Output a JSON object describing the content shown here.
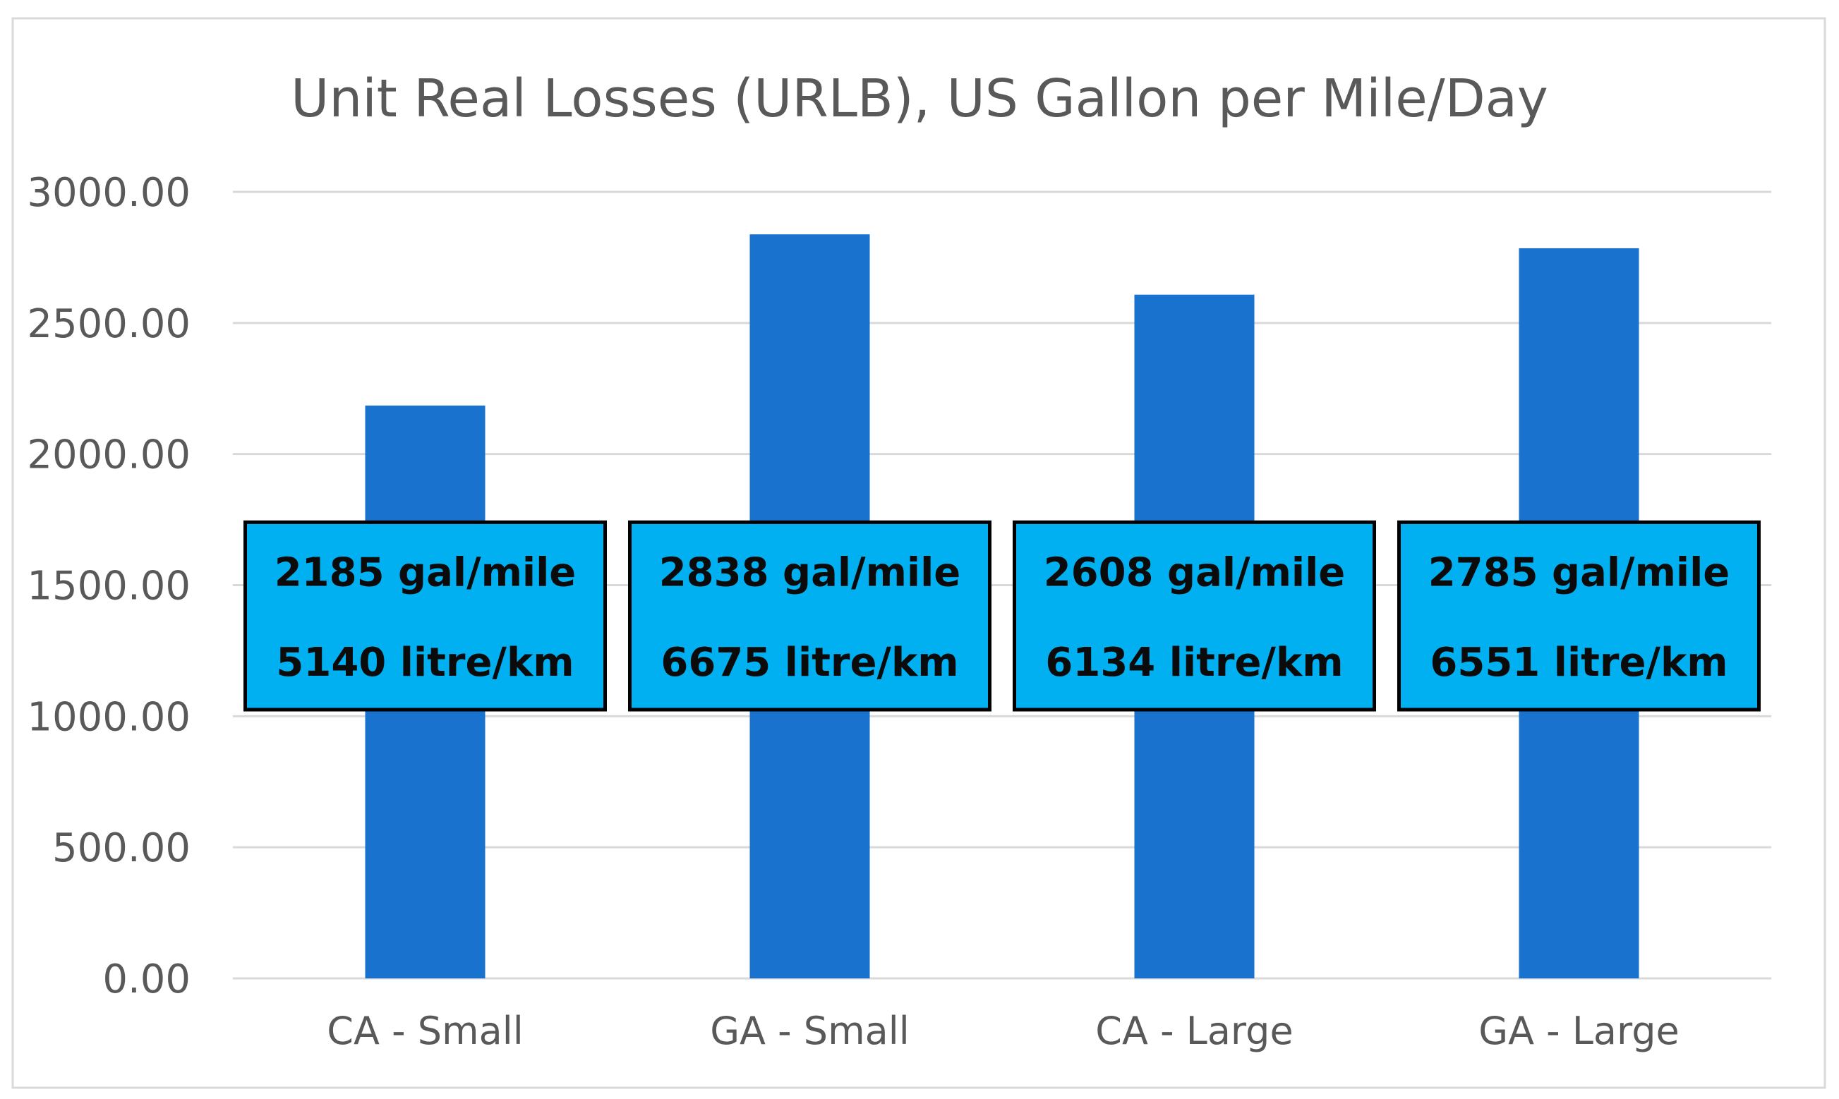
{
  "chart_data": {
    "type": "bar",
    "title": "Unit Real Losses (URLB), US Gallon per Mile/Day",
    "xlabel": "",
    "ylabel": "",
    "categories": [
      "CA - Small",
      "GA - Small",
      "CA - Large",
      "GA - Large"
    ],
    "values": [
      2185,
      2838,
      2608,
      2785
    ],
    "ylim": [
      0,
      3000
    ],
    "yticks": [
      0,
      500,
      1000,
      1500,
      2000,
      2500,
      3000
    ],
    "ytick_labels": [
      "0.00",
      "500.00",
      "1000.00",
      "1500.00",
      "2000.00",
      "2500.00",
      "3000.00"
    ],
    "grid": true,
    "legend": "none",
    "annotations": [
      {
        "category": "CA - Small",
        "line1": "2185 gal/mile",
        "line2": "5140 litre/km"
      },
      {
        "category": "GA - Small",
        "line1": "2838 gal/mile",
        "line2": "6675 litre/km"
      },
      {
        "category": "CA - Large",
        "line1": "2608 gal/mile",
        "line2": "6134 litre/km"
      },
      {
        "category": "GA - Large",
        "line1": "2785 gal/mile",
        "line2": "6551 litre/km"
      }
    ],
    "annotation_box_range": [
      1025,
      1740
    ]
  },
  "colors": {
    "bar": "#1872ce",
    "callout_fill": "#01b0f1",
    "gridline": "#d9d9d9",
    "text": "#595959"
  }
}
